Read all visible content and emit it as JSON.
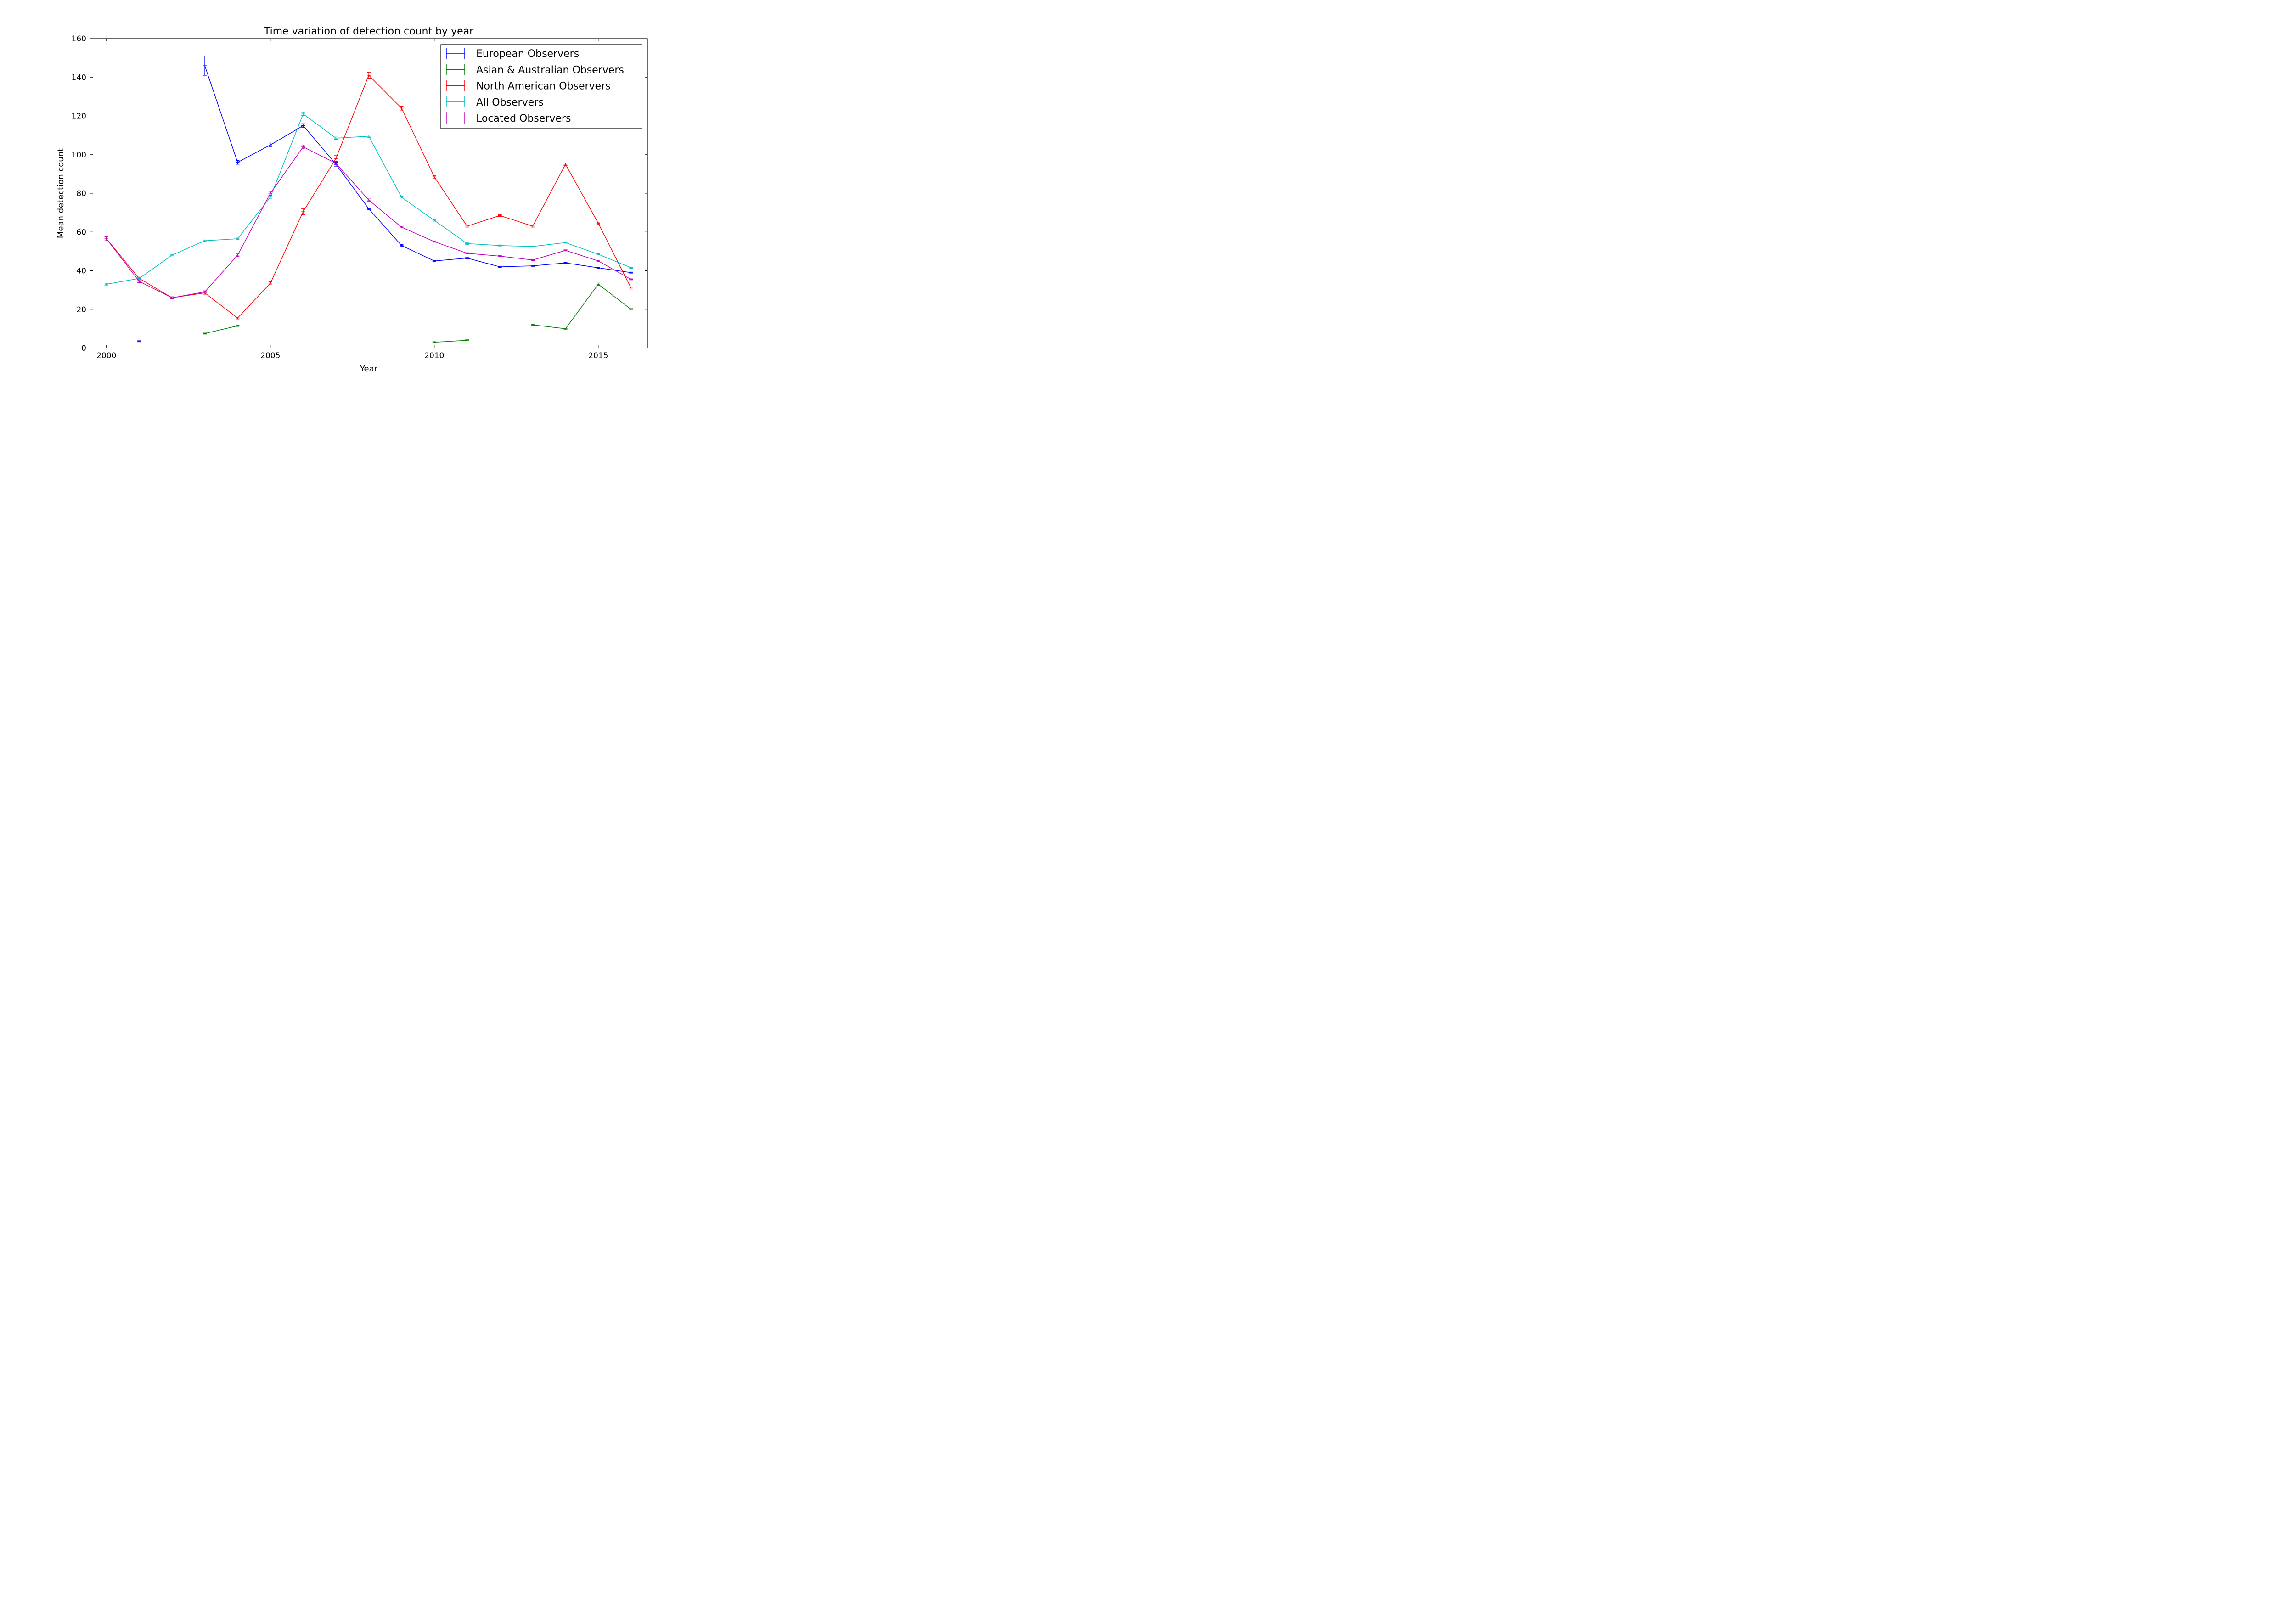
{
  "chart_data": {
    "type": "line",
    "title": "Time variation of detection count by year",
    "xlabel": "Year",
    "ylabel": "Mean detection count",
    "xlim": [
      1999.5,
      2016.5
    ],
    "ylim": [
      0,
      160
    ],
    "xticks": [
      2000,
      2005,
      2010,
      2015
    ],
    "yticks": [
      0,
      20,
      40,
      60,
      80,
      100,
      120,
      140,
      160
    ],
    "grid": false,
    "legend_position": "top-right",
    "x": [
      2000,
      2001,
      2002,
      2003,
      2004,
      2005,
      2006,
      2007,
      2008,
      2009,
      2010,
      2011,
      2012,
      2013,
      2014,
      2015,
      2016
    ],
    "series": [
      {
        "name": "European Observers",
        "color": "#0000ff",
        "values": [
          null,
          3.5,
          null,
          146,
          96,
          105,
          115,
          95,
          72,
          53,
          45,
          46.5,
          42,
          42.5,
          44,
          41.5,
          39
        ],
        "errors": [
          0,
          0.3,
          0,
          5,
          1,
          1,
          1,
          1,
          0.5,
          0.5,
          0.3,
          0.3,
          0.3,
          0.3,
          0.3,
          0.3,
          0.3
        ]
      },
      {
        "name": "Asian & Australian Observers",
        "color": "#008000",
        "values": [
          null,
          null,
          null,
          7.5,
          11.5,
          null,
          null,
          null,
          null,
          null,
          3,
          4,
          null,
          12,
          10,
          33,
          20
        ],
        "errors": [
          0,
          0,
          0,
          0.3,
          0.3,
          0,
          0,
          0,
          0,
          0,
          0.3,
          0.3,
          0,
          0.3,
          0.3,
          0.6,
          0.4
        ]
      },
      {
        "name": "North American Observers",
        "color": "#ff0000",
        "values": [
          56.5,
          36,
          26,
          28.5,
          15.5,
          33.5,
          70.5,
          98,
          141,
          124,
          88.5,
          63,
          68.5,
          63,
          95,
          64.5,
          31
        ],
        "errors": [
          1,
          0.7,
          0.5,
          0.7,
          0.5,
          0.8,
          1.5,
          1.5,
          1.5,
          1,
          0.7,
          0.5,
          0.5,
          0.5,
          0.7,
          0.6,
          0.5
        ]
      },
      {
        "name": "All Observers",
        "color": "#00bfbf",
        "values": [
          33,
          36,
          48,
          55.5,
          56.5,
          78,
          121,
          108.5,
          109.5,
          78,
          66,
          54,
          53,
          52.5,
          54.5,
          48.5,
          41.5
        ],
        "errors": [
          0.5,
          0.5,
          0.4,
          0.4,
          0.4,
          0.6,
          0.8,
          0.6,
          0.6,
          0.5,
          0.4,
          0.4,
          0.3,
          0.3,
          0.3,
          0.3,
          0.3
        ]
      },
      {
        "name": "Located Observers",
        "color": "#bf00bf",
        "values": [
          56.5,
          34.5,
          26,
          29,
          48,
          80,
          104,
          95.5,
          76.5,
          62.5,
          55,
          49,
          47.5,
          45.5,
          50.5,
          45,
          35.5
        ],
        "errors": [
          1,
          0.7,
          0.5,
          0.6,
          0.7,
          1,
          1,
          0.8,
          0.6,
          0.4,
          0.3,
          0.3,
          0.3,
          0.3,
          0.3,
          0.3,
          0.3
        ]
      }
    ]
  }
}
